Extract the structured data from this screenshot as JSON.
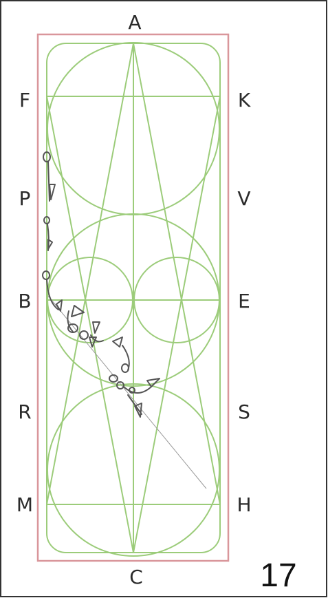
{
  "arena": {
    "letters": {
      "top": "A",
      "bottom": "C",
      "left_upper": "F",
      "left_2": "P",
      "left_mid": "B",
      "left_4": "R",
      "left_lower": "M",
      "right_upper": "K",
      "right_2": "V",
      "right_mid": "E",
      "right_4": "S",
      "right_lower": "H"
    }
  },
  "page_number": "17",
  "colors": {
    "border": "#d9969b",
    "arena_line": "#9ccc7a",
    "text": "#2b2b2b",
    "figure_stroke": "#555555"
  }
}
